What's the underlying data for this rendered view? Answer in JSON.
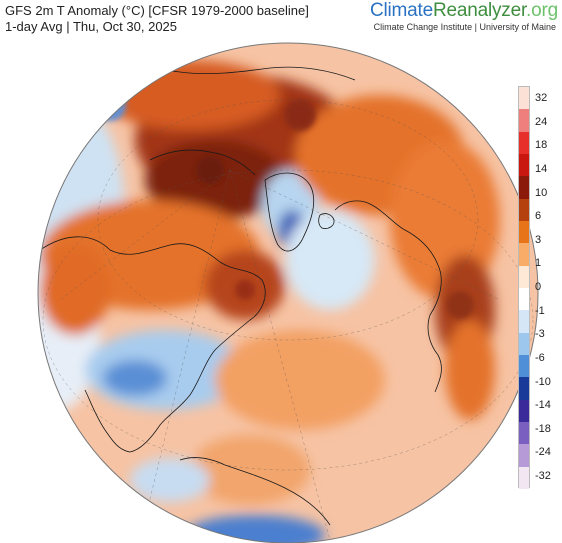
{
  "header": {
    "title": "GFS 2m T Anomaly (°C) [CFSR 1979-2000 baseline]",
    "subtitle": "1-day Avg | Thu, Oct 30, 2025"
  },
  "brand": {
    "name_part1": "Climate",
    "name_part2": "Reanalyzer",
    "name_part3": ".org",
    "tagline": "Climate Change Institute | University of Maine",
    "colors": {
      "part1": "#2b73c2",
      "part2": "#3f8d3f",
      "part3": "#6cc36c"
    }
  },
  "legend": {
    "ticks": [
      "32",
      "24",
      "18",
      "14",
      "10",
      "6",
      "3",
      "1",
      "0",
      "-1",
      "-3",
      "-6",
      "-10",
      "-14",
      "-18",
      "-24",
      "-32"
    ],
    "colors": [
      "#fbe1d6",
      "#ef7f7c",
      "#e8302a",
      "#c81810",
      "#8b1a0a",
      "#b5420e",
      "#e8741a",
      "#f9ab68",
      "#fde9d6",
      "#ffffff",
      "#d5e6f6",
      "#9dc7ed",
      "#4f8fd8",
      "#1a3a9a",
      "#3a2a9a",
      "#7a5ec0",
      "#b69ad8",
      "#f3e6f3"
    ]
  },
  "map": {
    "projection": "orthographic",
    "view": "northern hemisphere centered on the North Atlantic",
    "colors": {
      "ocean_base": "#f6c3a4",
      "strong_warm": "#8a2b12",
      "warm": "#e4722a",
      "mild_warm": "#f49a5c",
      "cool": "#b9d8f2",
      "cold": "#3c6fcb",
      "very_cold": "#1d3d9b"
    }
  }
}
